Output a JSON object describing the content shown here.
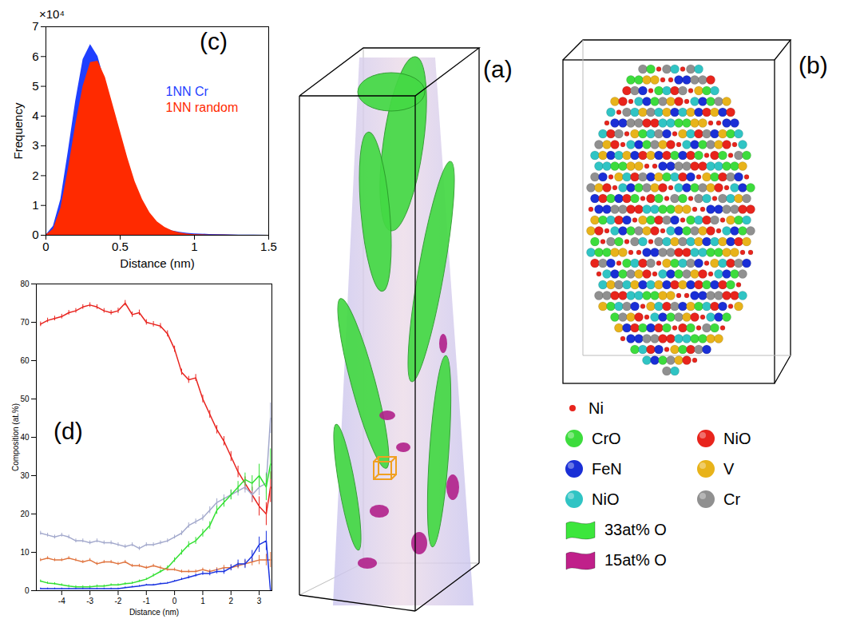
{
  "chart_data": [
    {
      "type": "area",
      "label": "(c)",
      "xlabel": "Distance (nm)",
      "ylabel": "Frequency",
      "y_multiplier": "×10⁴",
      "x": [
        0,
        0.05,
        0.1,
        0.15,
        0.2,
        0.25,
        0.3,
        0.35,
        0.4,
        0.45,
        0.5,
        0.55,
        0.6,
        0.65,
        0.7,
        0.75,
        0.8,
        0.85,
        0.9,
        0.95,
        1.0,
        1.1,
        1.2,
        1.3,
        1.4,
        1.5
      ],
      "series": [
        {
          "name": "1NN Cr",
          "color": "#1f3fff",
          "values": [
            0,
            0.3,
            1.2,
            2.8,
            4.5,
            5.9,
            6.4,
            6.0,
            5.1,
            4.0,
            3.0,
            2.1,
            1.45,
            0.95,
            0.6,
            0.38,
            0.24,
            0.15,
            0.1,
            0.07,
            0.05,
            0.03,
            0.02,
            0.01,
            0.005,
            0
          ]
        },
        {
          "name": "1NN random",
          "color": "#ff2a00",
          "values": [
            0,
            0.2,
            0.9,
            2.2,
            3.7,
            5.0,
            5.8,
            5.85,
            5.3,
            4.4,
            3.5,
            2.6,
            1.8,
            1.2,
            0.75,
            0.45,
            0.27,
            0.15,
            0.08,
            0.04,
            0.02,
            0.01,
            0.005,
            0,
            0,
            0
          ]
        }
      ],
      "xlim": [
        0,
        1.5
      ],
      "xticks": [
        0,
        0.5,
        1,
        1.5
      ],
      "ylim": [
        0,
        7
      ],
      "yticks": [
        0,
        1,
        2,
        3,
        4,
        5,
        6,
        7
      ],
      "legend": "right",
      "grid": false
    },
    {
      "type": "line",
      "label": "(d)",
      "xlabel": "Distance (nm)",
      "ylabel": "Composition (at.%)",
      "x": [
        -4.75,
        -4.5,
        -4.25,
        -4,
        -3.75,
        -3.5,
        -3.25,
        -3,
        -2.75,
        -2.5,
        -2.25,
        -2,
        -1.75,
        -1.5,
        -1.25,
        -1,
        -0.75,
        -0.5,
        -0.25,
        0,
        0.25,
        0.5,
        0.75,
        1,
        1.25,
        1.5,
        1.75,
        2,
        2.25,
        2.5,
        2.75,
        3,
        3.25,
        3.4
      ],
      "series": [
        {
          "color": "#e8231e",
          "values": [
            69.5,
            70.5,
            71,
            71.5,
            72.5,
            73,
            74,
            74.5,
            74,
            73,
            72.5,
            73,
            75,
            72,
            72.5,
            70,
            69.5,
            69,
            67,
            63,
            57,
            55,
            55.5,
            50,
            46,
            42,
            39,
            35,
            31,
            28,
            25,
            22,
            20,
            27
          ],
          "errors": [
            0.6,
            0.6,
            0.6,
            0.6,
            0.6,
            0.6,
            0.6,
            0.6,
            0.6,
            0.6,
            0.6,
            0.7,
            0.7,
            0.7,
            0.7,
            0.7,
            0.7,
            0.7,
            0.8,
            0.8,
            0.8,
            0.9,
            0.9,
            1,
            1,
            1.1,
            1.2,
            1.3,
            1.5,
            1.7,
            2,
            2.5,
            3,
            4
          ]
        },
        {
          "color": "#a3a9cc",
          "values": [
            15,
            14.5,
            14,
            14.5,
            14,
            13,
            13,
            12.5,
            13,
            12.5,
            12.5,
            12,
            11.5,
            12,
            11,
            12,
            12,
            12.5,
            13,
            14,
            15,
            17,
            18,
            19,
            21,
            23,
            24,
            25,
            26,
            27,
            25,
            27,
            28,
            45
          ],
          "errors": [
            0.5,
            0.5,
            0.5,
            0.5,
            0.5,
            0.5,
            0.5,
            0.5,
            0.5,
            0.5,
            0.5,
            0.5,
            0.5,
            0.5,
            0.5,
            0.5,
            0.5,
            0.5,
            0.5,
            0.5,
            0.6,
            0.7,
            0.7,
            0.8,
            0.9,
            1,
            1,
            1.2,
            1.3,
            1.5,
            1.8,
            2.2,
            2.8,
            4
          ]
        },
        {
          "color": "#33e033",
          "values": [
            2.5,
            2,
            1.8,
            1.5,
            1.2,
            1,
            1,
            1,
            1.2,
            1.2,
            1.5,
            1.5,
            1.8,
            2,
            2.5,
            3,
            4,
            5,
            6,
            8,
            10,
            12,
            13,
            15,
            17,
            21,
            23,
            25,
            27,
            29,
            28,
            30,
            27,
            33
          ],
          "errors": [
            0.3,
            0.3,
            0.3,
            0.3,
            0.3,
            0.3,
            0.3,
            0.3,
            0.3,
            0.3,
            0.3,
            0.3,
            0.3,
            0.3,
            0.3,
            0.3,
            0.4,
            0.4,
            0.5,
            0.6,
            0.7,
            0.8,
            0.9,
            1,
            1,
            1.1,
            1.2,
            1.3,
            1.5,
            1.7,
            2,
            3,
            3.5,
            4
          ]
        },
        {
          "color": "#e0743f",
          "values": [
            8,
            8.5,
            8,
            8,
            8.5,
            8,
            7.5,
            8,
            7,
            7.5,
            7.5,
            7,
            7.5,
            6.5,
            6.5,
            6,
            6.5,
            6,
            5.5,
            5.5,
            5,
            5,
            5,
            5.5,
            5,
            5.5,
            6,
            6,
            6.5,
            7,
            7.5,
            8,
            8,
            8
          ],
          "errors": [
            0.4,
            0.4,
            0.4,
            0.4,
            0.4,
            0.4,
            0.4,
            0.4,
            0.4,
            0.4,
            0.4,
            0.4,
            0.4,
            0.4,
            0.4,
            0.4,
            0.4,
            0.4,
            0.4,
            0.4,
            0.4,
            0.4,
            0.4,
            0.4,
            0.5,
            0.5,
            0.6,
            0.7,
            0.8,
            0.9,
            1,
            1.2,
            1.5,
            2
          ]
        },
        {
          "color": "#1a33e0",
          "values": [
            0.5,
            0.5,
            0.5,
            0.5,
            0.5,
            0.5,
            0.5,
            0.5,
            0.5,
            0.5,
            0.5,
            0.5,
            0.8,
            1,
            1.2,
            1.5,
            1.5,
            1.8,
            2,
            2.5,
            3,
            3.5,
            4,
            4.5,
            4.5,
            5,
            5,
            6,
            7,
            7,
            9,
            12,
            13,
            0
          ],
          "errors": [
            0.2,
            0.2,
            0.2,
            0.2,
            0.2,
            0.2,
            0.2,
            0.2,
            0.2,
            0.2,
            0.2,
            0.2,
            0.2,
            0.2,
            0.2,
            0.2,
            0.2,
            0.2,
            0.2,
            0.2,
            0.3,
            0.4,
            0.4,
            0.5,
            0.6,
            0.6,
            0.7,
            0.8,
            1,
            1.2,
            1.5,
            2,
            2.5,
            0
          ]
        }
      ],
      "xlim": [
        -4.9,
        3.45
      ],
      "xticks": [
        -4,
        -3,
        -2,
        -1,
        0,
        1,
        2,
        3
      ],
      "ylim": [
        0,
        80
      ],
      "yticks": [
        0,
        10,
        20,
        30,
        40,
        50,
        60,
        70,
        80
      ],
      "grid": false
    }
  ],
  "figure": {
    "panel_a": {
      "label": "(a)"
    },
    "panel_b": {
      "label": "(b)"
    },
    "legend": [
      {
        "label": "Ni",
        "color": "#e8241c",
        "marker": "dot"
      },
      {
        "label": "CrO",
        "color": "#3ddc3d",
        "marker": "sphere"
      },
      {
        "label": "NiO",
        "color": "#e8241c",
        "marker": "sphere"
      },
      {
        "label": "FeN",
        "color": "#1a2fd6",
        "marker": "sphere"
      },
      {
        "label": "V",
        "color": "#e8b31a",
        "marker": "sphere"
      },
      {
        "label": "NiO",
        "color": "#30c4c4",
        "marker": "sphere"
      },
      {
        "label": "Cr",
        "color": "#909090",
        "marker": "sphere"
      },
      {
        "label": "33at% O",
        "color": "#3ce63c",
        "marker": "surface"
      },
      {
        "label": "15at% O",
        "color": "#c0208a",
        "marker": "surface"
      }
    ]
  }
}
